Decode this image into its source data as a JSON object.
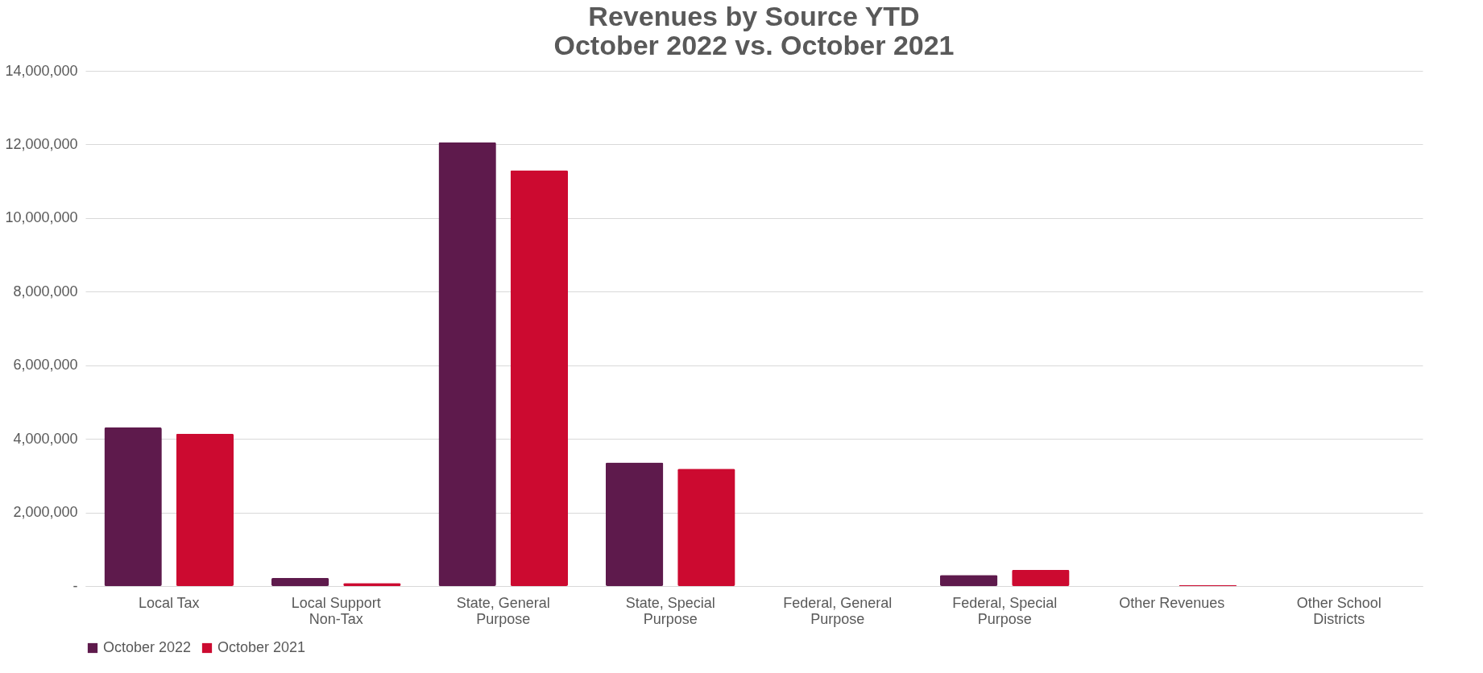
{
  "chart_data": {
    "type": "bar",
    "title": "Revenues by Source YTD\nOctober 2022 vs. October 2021",
    "categories": [
      "Local Tax",
      "Local Support\nNon-Tax",
      "State, General\nPurpose",
      "State, Special\nPurpose",
      "Federal, General\nPurpose",
      "Federal, Special\nPurpose",
      "Other Revenues",
      "Other School\nDistricts"
    ],
    "series": [
      {
        "name": "October 2022",
        "color": "#5e1a4c",
        "values": [
          4310000,
          220000,
          12060000,
          3360000,
          0,
          300000,
          null,
          0
        ]
      },
      {
        "name": "October 2021",
        "color": "#cc0a30",
        "values": [
          4140000,
          80000,
          11300000,
          3190000,
          0,
          440000,
          20000,
          0
        ]
      }
    ],
    "ylim": [
      0,
      14000000
    ],
    "yticks": [
      {
        "value": 0,
        "label": "-"
      },
      {
        "value": 2000000,
        "label": "2,000,000"
      },
      {
        "value": 4000000,
        "label": "4,000,000"
      },
      {
        "value": 6000000,
        "label": "6,000,000"
      },
      {
        "value": 8000000,
        "label": "8,000,000"
      },
      {
        "value": 10000000,
        "label": "10,000,000"
      },
      {
        "value": 12000000,
        "label": "12,000,000"
      },
      {
        "value": 14000000,
        "label": "14,000,000"
      }
    ],
    "grid": "y",
    "legend": "bottom"
  }
}
